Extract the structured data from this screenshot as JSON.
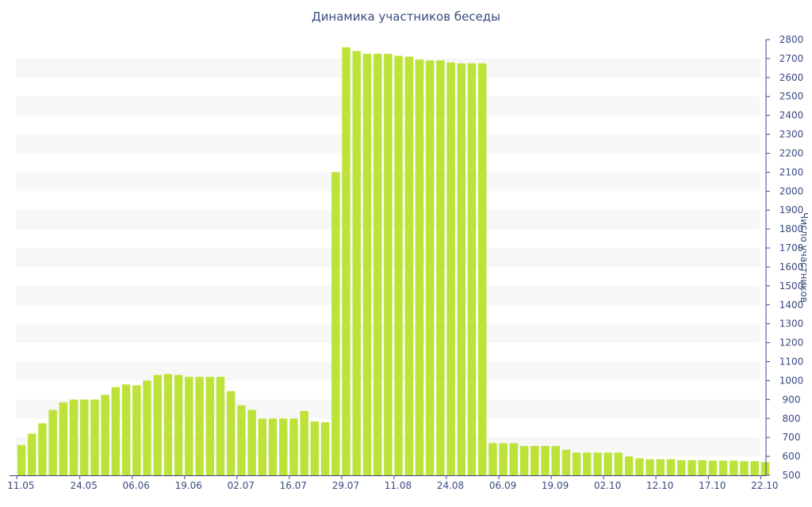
{
  "chart_data": {
    "type": "bar",
    "title": "Динамика участников беседы",
    "ylabel": "Число участников",
    "ylim": [
      500,
      2800
    ],
    "yticks": [
      500,
      600,
      700,
      800,
      900,
      1000,
      1100,
      1200,
      1300,
      1400,
      1500,
      1600,
      1700,
      1800,
      1900,
      2000,
      2100,
      2200,
      2300,
      2400,
      2500,
      2600,
      2700,
      2800
    ],
    "xtick_labels": [
      "11.05",
      "24.05",
      "06.06",
      "19.06",
      "02.07",
      "16.07",
      "29.07",
      "11.08",
      "24.08",
      "06.09",
      "19.09",
      "02.10",
      "12.10",
      "17.10",
      "22.10"
    ],
    "xtick_bar_index": [
      0,
      6,
      11,
      16,
      21,
      26,
      31,
      36,
      41,
      46,
      51,
      56,
      61,
      66,
      71
    ],
    "grid": "alternating horizontal bands",
    "bar_color": "#bde33a",
    "band_color": "#f7f7f7",
    "values": [
      660,
      720,
      775,
      845,
      885,
      900,
      900,
      900,
      925,
      965,
      980,
      975,
      1000,
      1030,
      1035,
      1030,
      1020,
      1020,
      1020,
      1020,
      945,
      870,
      845,
      800,
      800,
      800,
      800,
      840,
      785,
      780,
      2100,
      2760,
      2740,
      2725,
      2725,
      2725,
      2715,
      2710,
      2695,
      2690,
      2690,
      2680,
      2675,
      2675,
      2675,
      670,
      670,
      670,
      655,
      655,
      655,
      655,
      635,
      620,
      620,
      620,
      620,
      620,
      600,
      590,
      585,
      585,
      585,
      580,
      580,
      580,
      578,
      578,
      578,
      575,
      575,
      570
    ]
  }
}
